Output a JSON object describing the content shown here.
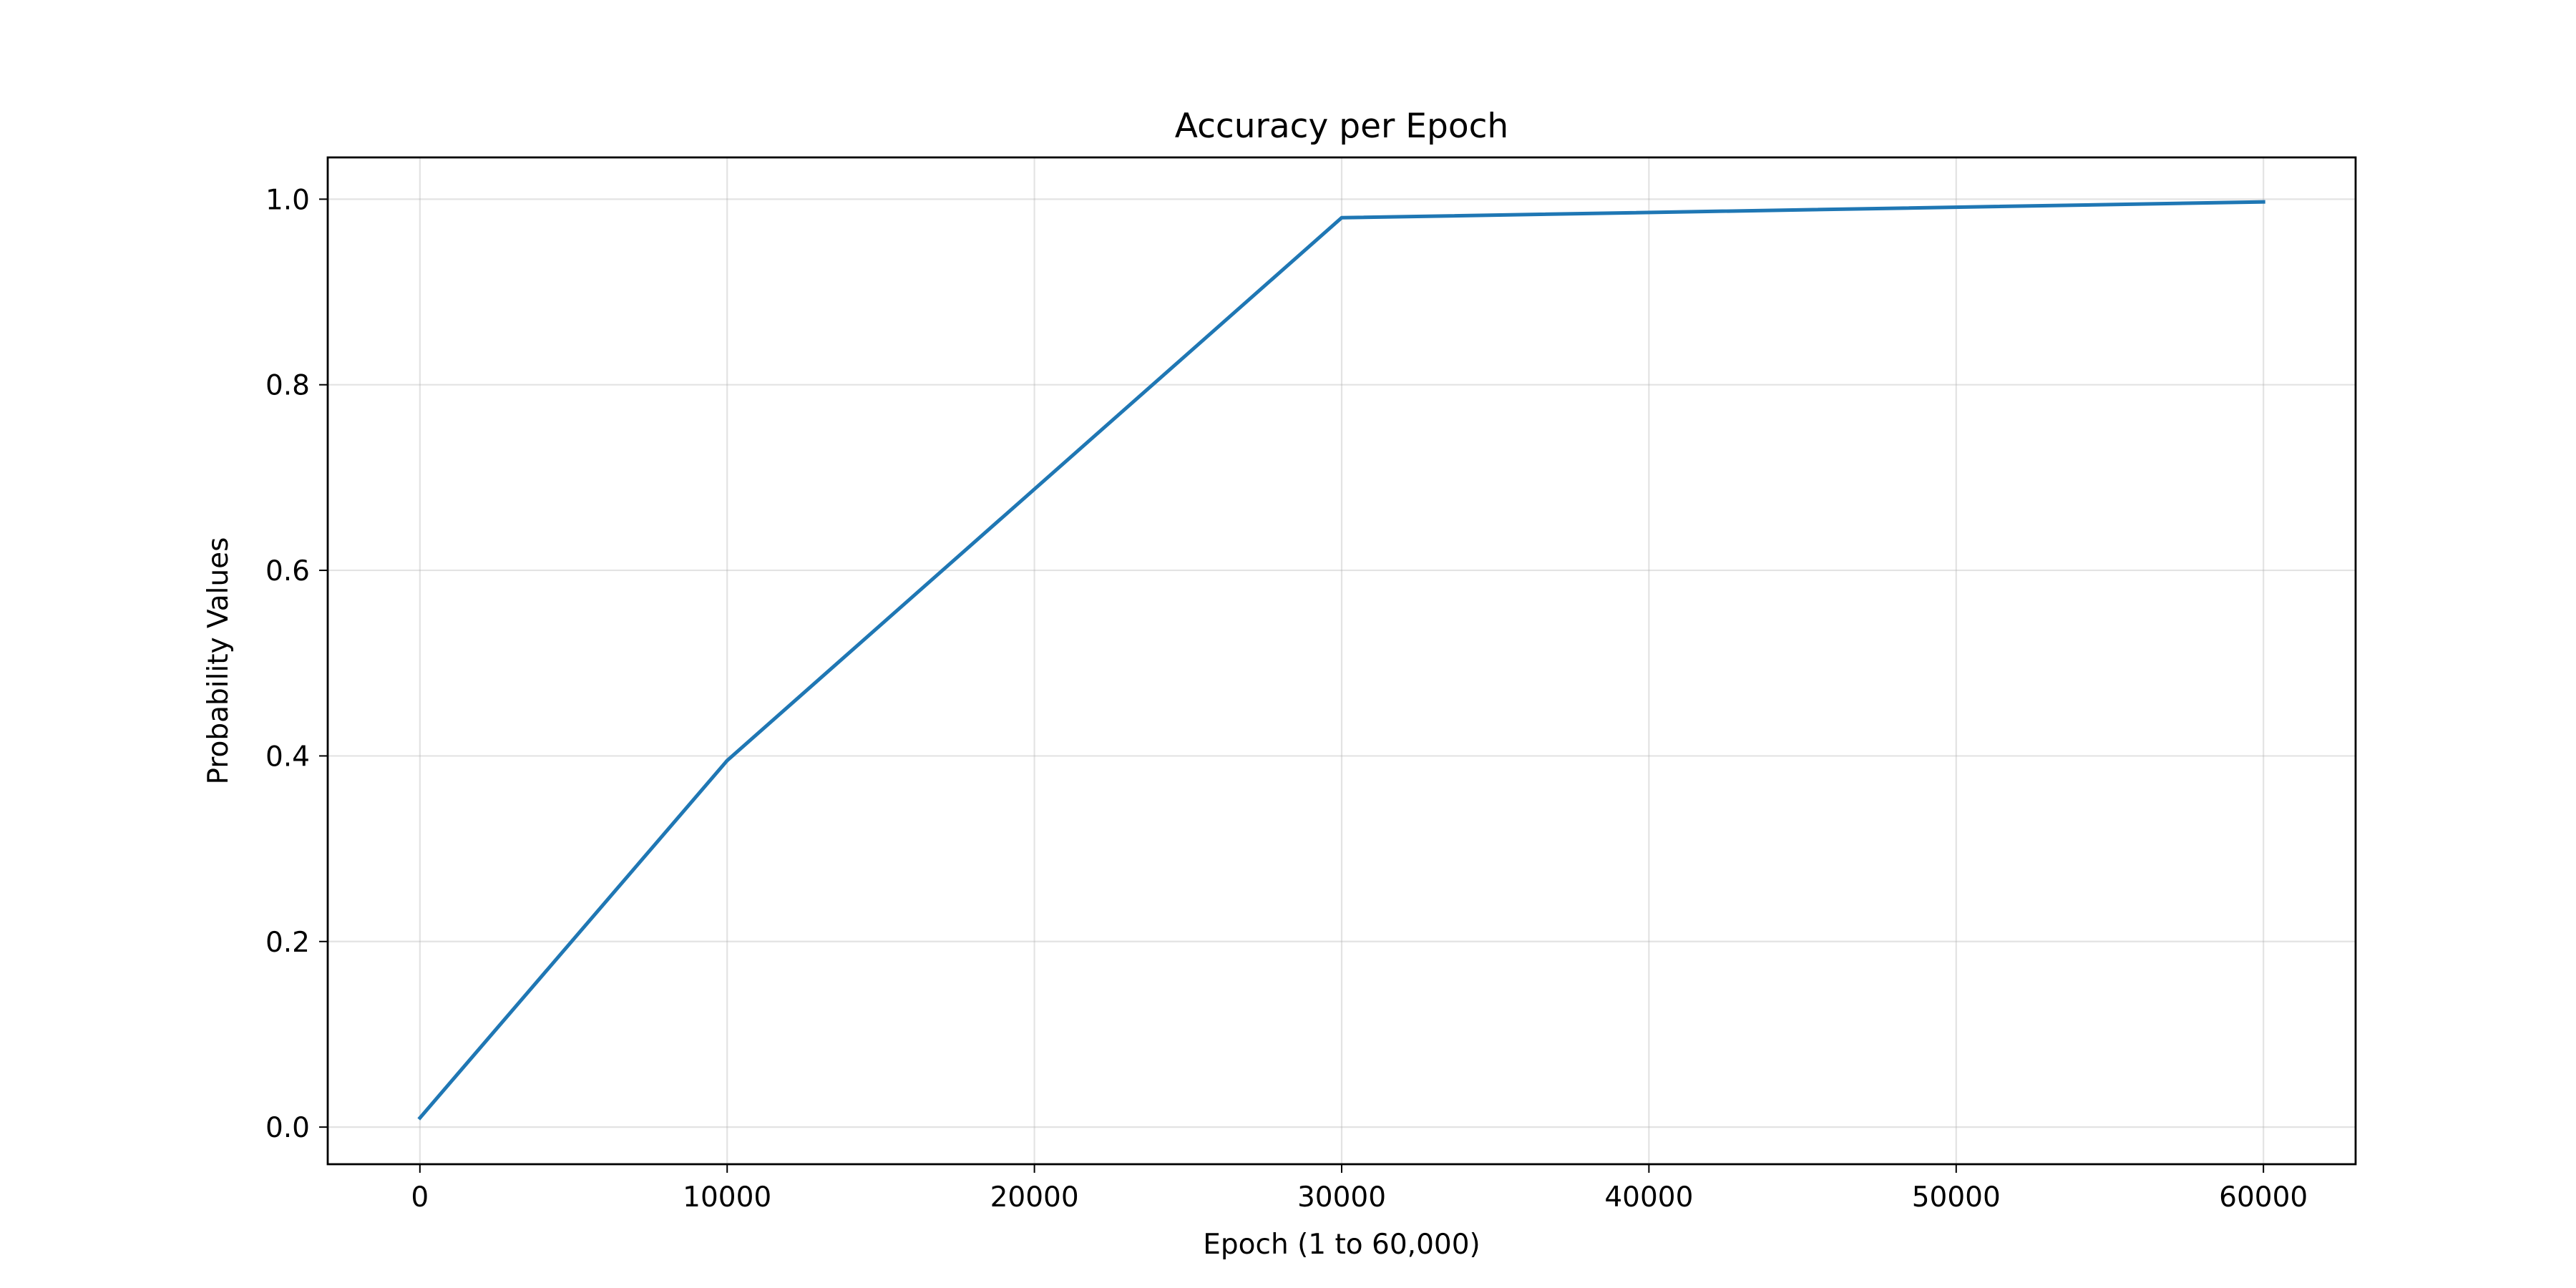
{
  "chart_data": {
    "type": "line",
    "title": "Accuracy per Epoch",
    "xlabel": "Epoch (1 to 60,000)",
    "ylabel": "Probability Values",
    "xlim": [
      -3000,
      63000
    ],
    "ylim": [
      -0.04,
      1.045
    ],
    "xticks": [
      0,
      10000,
      20000,
      30000,
      40000,
      50000,
      60000
    ],
    "yticks": [
      0.0,
      0.2,
      0.4,
      0.6,
      0.8,
      1.0
    ],
    "xtick_labels": [
      "0",
      "10000",
      "20000",
      "30000",
      "40000",
      "50000",
      "60000"
    ],
    "ytick_labels": [
      "0.0",
      "0.2",
      "0.4",
      "0.6",
      "0.8",
      "1.0"
    ],
    "grid": true,
    "legend": "none",
    "series": [
      {
        "color": "#1f77b4",
        "x": [
          1,
          10000,
          30000,
          60000
        ],
        "y": [
          0.01,
          0.395,
          0.98,
          0.997
        ]
      }
    ]
  }
}
